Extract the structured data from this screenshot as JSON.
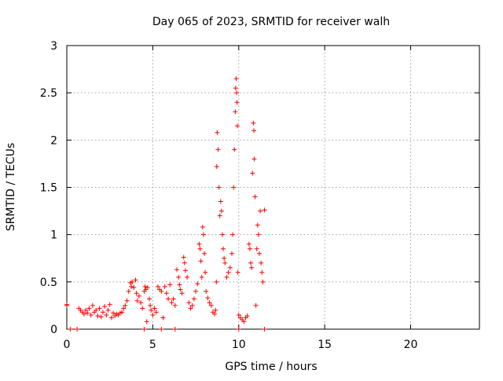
{
  "chart_data": {
    "type": "scatter",
    "title": "Day 065 of 2023, SRMTID for receiver walh",
    "xlabel": "GPS time / hours",
    "ylabel": "SRMTID / TECUs",
    "xlim": [
      0,
      24
    ],
    "ylim": [
      0,
      3
    ],
    "xticks": [
      0,
      5,
      10,
      15,
      20
    ],
    "xtick_labels": [
      "0",
      "5",
      "10",
      "15",
      "20"
    ],
    "yticks": [
      0,
      0.5,
      1,
      1.5,
      2,
      2.5,
      3
    ],
    "ytick_labels": [
      "0",
      "0.5",
      "1",
      "1.5",
      "2",
      "2.5",
      "3"
    ],
    "grid": true,
    "marker": "+",
    "series": [
      {
        "name": "SRMTID",
        "color": "#ff0000",
        "points": [
          [
            0.0,
            0.25
          ],
          [
            0.0,
            0.26
          ],
          [
            0.2,
            0.0
          ],
          [
            0.6,
            0.0
          ],
          [
            4.5,
            0.0
          ],
          [
            5.5,
            0.0
          ],
          [
            6.3,
            0.0
          ],
          [
            10.0,
            0.0
          ],
          [
            11.5,
            0.0
          ],
          [
            0.7,
            0.22
          ],
          [
            0.8,
            0.2
          ],
          [
            0.9,
            0.18
          ],
          [
            1.0,
            0.16
          ],
          [
            1.1,
            0.2
          ],
          [
            1.2,
            0.17
          ],
          [
            1.3,
            0.22
          ],
          [
            1.4,
            0.15
          ],
          [
            1.5,
            0.25
          ],
          [
            1.6,
            0.18
          ],
          [
            1.7,
            0.2
          ],
          [
            1.8,
            0.14
          ],
          [
            1.9,
            0.22
          ],
          [
            2.0,
            0.13
          ],
          [
            2.1,
            0.18
          ],
          [
            2.2,
            0.24
          ],
          [
            2.3,
            0.15
          ],
          [
            2.4,
            0.2
          ],
          [
            2.5,
            0.26
          ],
          [
            2.6,
            0.12
          ],
          [
            2.7,
            0.17
          ],
          [
            2.8,
            0.14
          ],
          [
            2.9,
            0.16
          ],
          [
            3.0,
            0.15
          ],
          [
            3.1,
            0.17
          ],
          [
            3.2,
            0.18
          ],
          [
            3.3,
            0.22
          ],
          [
            3.4,
            0.25
          ],
          [
            3.5,
            0.3
          ],
          [
            3.6,
            0.4
          ],
          [
            3.7,
            0.49
          ],
          [
            3.75,
            0.45
          ],
          [
            3.8,
            0.5
          ],
          [
            3.9,
            0.44
          ],
          [
            4.0,
            0.52
          ],
          [
            4.05,
            0.38
          ],
          [
            4.1,
            0.3
          ],
          [
            4.2,
            0.35
          ],
          [
            4.3,
            0.28
          ],
          [
            4.4,
            0.22
          ],
          [
            4.5,
            0.4
          ],
          [
            4.55,
            0.45
          ],
          [
            4.6,
            0.42
          ],
          [
            4.65,
            0.08
          ],
          [
            4.7,
            0.44
          ],
          [
            4.8,
            0.32
          ],
          [
            4.85,
            0.25
          ],
          [
            4.9,
            0.2
          ],
          [
            5.0,
            0.15
          ],
          [
            5.1,
            0.22
          ],
          [
            5.2,
            0.18
          ],
          [
            5.3,
            0.45
          ],
          [
            5.4,
            0.42
          ],
          [
            5.5,
            0.4
          ],
          [
            5.6,
            0.12
          ],
          [
            5.7,
            0.45
          ],
          [
            5.8,
            0.38
          ],
          [
            5.9,
            0.32
          ],
          [
            6.0,
            0.47
          ],
          [
            6.1,
            0.28
          ],
          [
            6.2,
            0.32
          ],
          [
            6.3,
            0.25
          ],
          [
            6.4,
            0.63
          ],
          [
            6.5,
            0.55
          ],
          [
            6.55,
            0.47
          ],
          [
            6.6,
            0.42
          ],
          [
            6.7,
            0.38
          ],
          [
            6.8,
            0.76
          ],
          [
            6.85,
            0.7
          ],
          [
            6.9,
            0.62
          ],
          [
            7.0,
            0.55
          ],
          [
            7.1,
            0.28
          ],
          [
            7.2,
            0.22
          ],
          [
            7.3,
            0.25
          ],
          [
            7.4,
            0.32
          ],
          [
            7.5,
            0.4
          ],
          [
            7.6,
            0.48
          ],
          [
            7.7,
            0.9
          ],
          [
            7.75,
            0.85
          ],
          [
            7.8,
            0.72
          ],
          [
            7.85,
            0.55
          ],
          [
            7.9,
            1.08
          ],
          [
            7.95,
            1.0
          ],
          [
            8.0,
            0.8
          ],
          [
            8.05,
            0.6
          ],
          [
            8.1,
            0.4
          ],
          [
            8.2,
            0.33
          ],
          [
            8.3,
            0.28
          ],
          [
            8.4,
            0.25
          ],
          [
            8.5,
            0.18
          ],
          [
            8.6,
            0.16
          ],
          [
            8.65,
            0.2
          ],
          [
            8.7,
            0.5
          ],
          [
            8.72,
            1.72
          ],
          [
            8.75,
            2.08
          ],
          [
            8.8,
            1.9
          ],
          [
            8.85,
            1.5
          ],
          [
            8.9,
            1.2
          ],
          [
            8.95,
            1.35
          ],
          [
            9.0,
            1.25
          ],
          [
            9.05,
            1.0
          ],
          [
            9.1,
            0.85
          ],
          [
            9.15,
            0.75
          ],
          [
            9.2,
            0.7
          ],
          [
            9.3,
            0.55
          ],
          [
            9.4,
            0.6
          ],
          [
            9.5,
            0.65
          ],
          [
            9.6,
            0.8
          ],
          [
            9.65,
            1.0
          ],
          [
            9.7,
            1.5
          ],
          [
            9.75,
            1.9
          ],
          [
            9.8,
            2.3
          ],
          [
            9.82,
            2.55
          ],
          [
            9.85,
            2.65
          ],
          [
            9.88,
            2.5
          ],
          [
            9.9,
            2.4
          ],
          [
            9.92,
            2.15
          ],
          [
            9.95,
            0.6
          ],
          [
            10.0,
            0.15
          ],
          [
            10.1,
            0.12
          ],
          [
            10.2,
            0.1
          ],
          [
            10.3,
            0.08
          ],
          [
            10.4,
            0.12
          ],
          [
            10.5,
            0.14
          ],
          [
            10.6,
            0.9
          ],
          [
            10.65,
            0.85
          ],
          [
            10.7,
            0.7
          ],
          [
            10.75,
            0.65
          ],
          [
            10.8,
            1.65
          ],
          [
            10.85,
            2.18
          ],
          [
            10.88,
            2.1
          ],
          [
            10.9,
            1.8
          ],
          [
            10.95,
            1.4
          ],
          [
            11.0,
            0.25
          ],
          [
            11.05,
            0.85
          ],
          [
            11.1,
            1.1
          ],
          [
            11.15,
            1.0
          ],
          [
            11.2,
            0.8
          ],
          [
            11.25,
            1.25
          ],
          [
            11.3,
            0.7
          ],
          [
            11.35,
            0.6
          ],
          [
            11.4,
            0.5
          ],
          [
            11.5,
            1.26
          ]
        ]
      }
    ]
  }
}
